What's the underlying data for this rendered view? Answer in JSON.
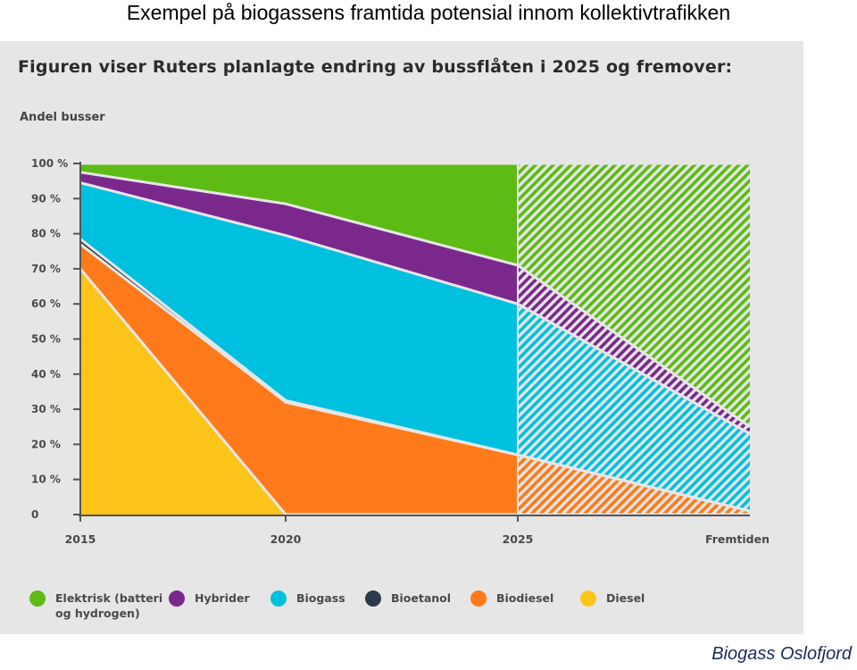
{
  "slide_title": "Exempel på biogassens framtida potensial innom kollektivtrafikken",
  "footer": "Biogass Oslofjord",
  "colors": {
    "Elektrisk": "#5dbb14",
    "Hybrider": "#7b288d",
    "Biogass": "#00c0e0",
    "Bioetanol": "#2b3a4a",
    "Biodiesel": "#ff7a1a",
    "Diesel": "#fdc41a",
    "panel": "#e6e6e6"
  },
  "chart_data": {
    "type": "area",
    "title": "Figuren viser Ruters planlagte endring av bussflåten i 2025 og fremover:",
    "ylabel": "Andel busser",
    "xlabel": "",
    "x": [
      "2015",
      "2020",
      "2025",
      "Fremtiden"
    ],
    "y_ticks": [
      "0",
      "10 %",
      "20 %",
      "30 %",
      "40 %",
      "50 %",
      "60 %",
      "70 %",
      "80 %",
      "90 %",
      "100 %"
    ],
    "ylim": [
      0,
      100
    ],
    "stacked": true,
    "projected_from": "2025",
    "projected_style": "hatched",
    "series": [
      {
        "name": "Diesel",
        "values": [
          70,
          0,
          0,
          0
        ]
      },
      {
        "name": "Biodiesel",
        "values": [
          7,
          32,
          17,
          1
        ]
      },
      {
        "name": "Bioetanol",
        "values": [
          1.5,
          0.5,
          0,
          0
        ]
      },
      {
        "name": "Biogass",
        "values": [
          16,
          47,
          43,
          22
        ]
      },
      {
        "name": "Hybrider",
        "values": [
          3,
          9,
          11,
          2
        ]
      },
      {
        "name": "Elektrisk",
        "values": [
          2.5,
          11.5,
          29,
          75
        ]
      }
    ],
    "legend_labels": {
      "Elektrisk": [
        "Elektrisk (batteri",
        "og hydrogen)"
      ],
      "Hybrider": [
        "Hybrider"
      ],
      "Biogass": [
        "Biogass"
      ],
      "Bioetanol": [
        "Bioetanol"
      ],
      "Biodiesel": [
        "Biodiesel"
      ],
      "Diesel": [
        "Diesel"
      ]
    },
    "legend_order": [
      "Elektrisk",
      "Hybrider",
      "Biogass",
      "Bioetanol",
      "Biodiesel",
      "Diesel"
    ],
    "legend_position": "bottom",
    "grid": false
  }
}
